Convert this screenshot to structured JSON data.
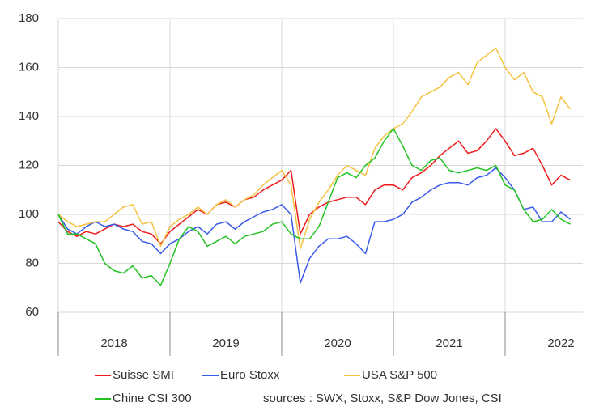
{
  "chart_data": {
    "type": "line",
    "categories": [
      null,
      null,
      null,
      null,
      null,
      null,
      "2018",
      null,
      null,
      null,
      null,
      null,
      null,
      null,
      null,
      null,
      null,
      null,
      "2019",
      null,
      null,
      null,
      null,
      null,
      null,
      null,
      null,
      null,
      null,
      null,
      "2020",
      null,
      null,
      null,
      null,
      null,
      null,
      null,
      null,
      null,
      null,
      null,
      "2021",
      null,
      null,
      null,
      null,
      null,
      null,
      null,
      null,
      null,
      null,
      null,
      "2022",
      null
    ],
    "series": [
      {
        "name": "Suisse SMI",
        "color": "#ee1c1c",
        "values": [
          97,
          93,
          91,
          93,
          92,
          94,
          96,
          95,
          96,
          93,
          92,
          88,
          93,
          96,
          99,
          102,
          100,
          104,
          105,
          103,
          106,
          107,
          110,
          112,
          114,
          118,
          92,
          100,
          103,
          105,
          106,
          107,
          107,
          104,
          110,
          112,
          112,
          110,
          115,
          117,
          120,
          124,
          127,
          130,
          125,
          126,
          130,
          135,
          130,
          124,
          125,
          127,
          120,
          112,
          116,
          114
        ]
      },
      {
        "name": "Euro Stoxx",
        "color": "#3a5bea",
        "values": [
          100,
          94,
          92,
          95,
          97,
          95,
          96,
          94,
          93,
          89,
          88,
          84,
          88,
          90,
          93,
          95,
          92,
          96,
          97,
          94,
          97,
          99,
          101,
          102,
          104,
          100,
          72,
          82,
          87,
          90,
          90,
          91,
          88,
          84,
          97,
          97,
          98,
          100,
          105,
          107,
          110,
          112,
          113,
          113,
          112,
          115,
          116,
          119,
          115,
          110,
          102,
          103,
          97,
          97,
          101,
          98
        ]
      },
      {
        "name": "USA S&P 500",
        "color": "#f5c242",
        "values": [
          100,
          97,
          95,
          96,
          97,
          97,
          100,
          103,
          104,
          96,
          97,
          87,
          95,
          98,
          100,
          103,
          100,
          104,
          106,
          103,
          106,
          108,
          112,
          115,
          118,
          112,
          86,
          98,
          105,
          110,
          116,
          120,
          118,
          116,
          127,
          132,
          135,
          137,
          142,
          148,
          150,
          152,
          156,
          158,
          153,
          162,
          165,
          168,
          160,
          155,
          158,
          150,
          148,
          137,
          148,
          143
        ]
      },
      {
        "name": "Chine CSI 300",
        "color": "#22c322",
        "values": [
          100,
          92,
          92,
          90,
          88,
          80,
          77,
          76,
          79,
          74,
          75,
          71,
          80,
          90,
          95,
          93,
          87,
          89,
          91,
          88,
          91,
          92,
          93,
          96,
          97,
          92,
          90,
          90,
          95,
          105,
          115,
          117,
          115,
          120,
          123,
          130,
          135,
          128,
          120,
          118,
          122,
          123,
          118,
          117,
          118,
          119,
          118,
          120,
          112,
          110,
          102,
          97,
          98,
          102,
          98,
          96
        ]
      }
    ],
    "ylim": [
      60,
      180
    ],
    "yticks": [
      60,
      80,
      100,
      120,
      140,
      160,
      180
    ],
    "grid": true,
    "annotation": "sources : SWX, Stoxx, S&P Dow Jones, CSI"
  }
}
